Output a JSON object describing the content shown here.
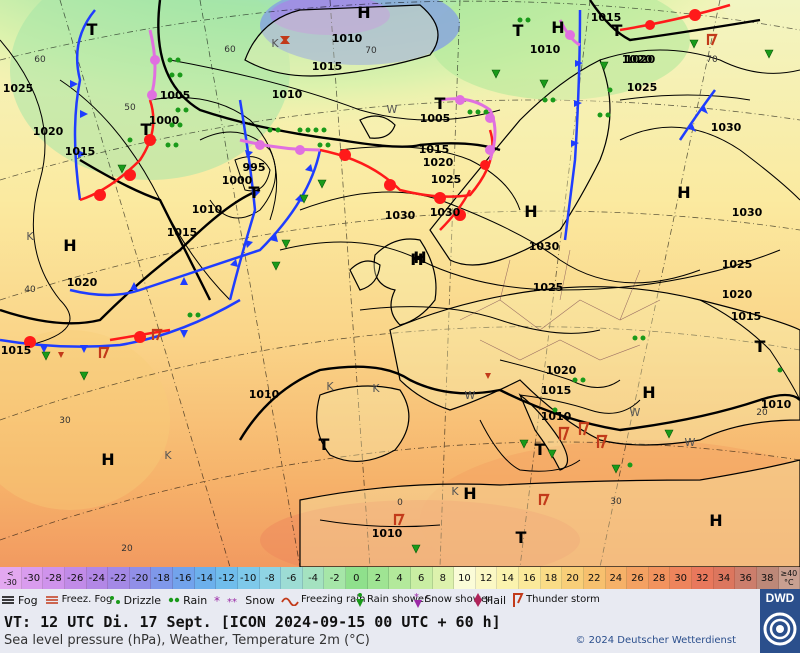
{
  "map": {
    "pressure_labels": [
      "1025",
      "1020",
      "1015",
      "1010",
      "1005",
      "1000",
      "995",
      "1030",
      "1015",
      "1020",
      "1010",
      "1015",
      "1030",
      "1025",
      "1020",
      "1015",
      "1010",
      "1015",
      "1020",
      "1030",
      "1025",
      "1025",
      "1030",
      "1015",
      "1010",
      "1010",
      "1005",
      "1000",
      "1030",
      "1020",
      "1015",
      "1010",
      "1020",
      "1025",
      "1010",
      "1015",
      "1020",
      "1010"
    ],
    "highs": [
      "H",
      "H",
      "H",
      "H",
      "H",
      "H",
      "H",
      "H",
      "H",
      "H",
      "H"
    ],
    "lows": [
      "T",
      "T",
      "T",
      "T",
      "T",
      "T",
      "T",
      "T",
      "T",
      "T"
    ],
    "lat_labels": [
      "60",
      "70",
      "60",
      "50",
      "40",
      "30",
      "20",
      "0",
      "30",
      "20",
      "70"
    ],
    "k_labels": [
      "K",
      "K",
      "K",
      "K",
      "W",
      "K",
      "W",
      "W",
      "K",
      "W"
    ]
  },
  "scale": {
    "cells": [
      {
        "label": "< -30",
        "color": "#e3a8f0"
      },
      {
        "label": "-30",
        "color": "#d99cee"
      },
      {
        "label": "-28",
        "color": "#cf93ec"
      },
      {
        "label": "-26",
        "color": "#c18be8"
      },
      {
        "label": "-24",
        "color": "#b287e6"
      },
      {
        "label": "-22",
        "color": "#a489e6"
      },
      {
        "label": "-20",
        "color": "#918fe8"
      },
      {
        "label": "-18",
        "color": "#7f98ea"
      },
      {
        "label": "-16",
        "color": "#72a3ec"
      },
      {
        "label": "-14",
        "color": "#6cb0ec"
      },
      {
        "label": "-12",
        "color": "#70bdec"
      },
      {
        "label": "-10",
        "color": "#7ec9ea"
      },
      {
        "label": "-8",
        "color": "#8fd4e4"
      },
      {
        "label": "-6",
        "color": "#9ddcd4"
      },
      {
        "label": "-4",
        "color": "#a4e2c0"
      },
      {
        "label": "-2",
        "color": "#a6e6a8"
      },
      {
        "label": "0",
        "color": "#8fe08c"
      },
      {
        "label": "2",
        "color": "#9fe493"
      },
      {
        "label": "4",
        "color": "#b3e99b"
      },
      {
        "label": "6",
        "color": "#c9eea3"
      },
      {
        "label": "8",
        "color": "#ddf2ad"
      },
      {
        "label": "10",
        "color": "#fbfcd8"
      },
      {
        "label": "12",
        "color": "#fbf8c4"
      },
      {
        "label": "14",
        "color": "#fbf3ae"
      },
      {
        "label": "16",
        "color": "#fbe99a"
      },
      {
        "label": "18",
        "color": "#fadc86"
      },
      {
        "label": "20",
        "color": "#f8ce78"
      },
      {
        "label": "22",
        "color": "#f7c06e"
      },
      {
        "label": "24",
        "color": "#f6b168"
      },
      {
        "label": "26",
        "color": "#f4a162"
      },
      {
        "label": "28",
        "color": "#f2935e"
      },
      {
        "label": "30",
        "color": "#ee845c"
      },
      {
        "label": "32",
        "color": "#e8785c"
      },
      {
        "label": "34",
        "color": "#dc765e"
      },
      {
        "label": "36",
        "color": "#cc7e6c"
      },
      {
        "label": "38",
        "color": "#bd8878"
      },
      {
        "label": "≥40 °C",
        "color": "#c9a091"
      }
    ]
  },
  "legend": {
    "fog": "Fog",
    "freezing_fog": "Freez. Fog",
    "drizzle": "Drizzle",
    "rain": "Rain",
    "snow": "Snow",
    "freezing_rain": "Freezing rain",
    "rain_shower": "Rain shower",
    "snow_shower": "Snow shower",
    "hail": "Hail",
    "thunderstorm": "Thunder storm"
  },
  "info": {
    "valid_time": "VT: 12 UTC Di.  17 Sept. [ICON 2024-09-15  00 UTC + 60 h]",
    "description": "Sea level pressure (hPa), Weather, Temperature 2m (°C)",
    "copyright": "© 2024 Deutscher Wetterdienst",
    "logo": "DWD"
  }
}
